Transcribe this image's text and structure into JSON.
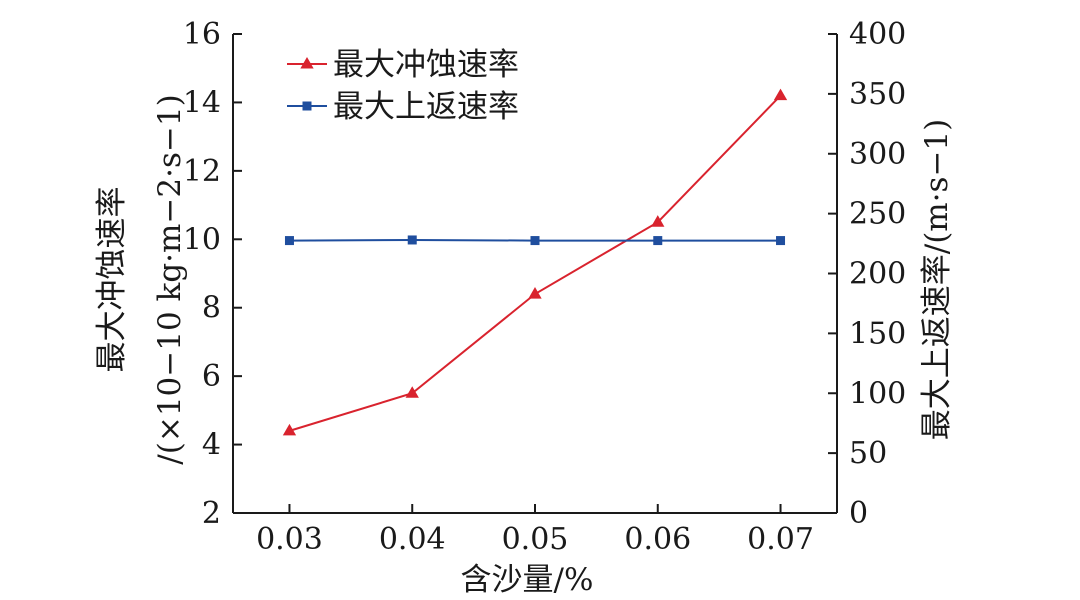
{
  "chart_data": {
    "type": "line",
    "x": [
      0.03,
      0.04,
      0.05,
      0.06,
      0.07
    ],
    "x_tick_labels": [
      "0.03",
      "0.04",
      "0.05",
      "0.06",
      "0.07"
    ],
    "xlabel": "含沙量/%",
    "xlim": [
      0.0254,
      0.0746
    ],
    "y_left": {
      "label_line1": "最大冲蚀速率",
      "label_line2": "/(×10−10 kg·m−2·s−1)",
      "ylim": [
        2,
        16
      ],
      "ticks": [
        "2",
        "4",
        "6",
        "8",
        "10",
        "12",
        "14",
        "16"
      ]
    },
    "y_right": {
      "label": "最大上返速率/(m·s−1)",
      "ylim": [
        0,
        400
      ],
      "ticks": [
        "0",
        "50",
        "100",
        "150",
        "200",
        "250",
        "300",
        "350",
        "400"
      ]
    },
    "series": [
      {
        "name": "最大冲蚀速率",
        "axis": "left",
        "values": [
          4.4,
          5.5,
          8.4,
          10.5,
          14.2
        ],
        "color": "#d9232e",
        "marker": "triangle"
      },
      {
        "name": "最大上返速率",
        "axis": "right",
        "values": [
          227.5,
          228,
          227.5,
          227.5,
          227.5
        ],
        "color": "#1f4e9e",
        "marker": "square"
      }
    ],
    "legend_position": "top-left",
    "grid": false
  }
}
